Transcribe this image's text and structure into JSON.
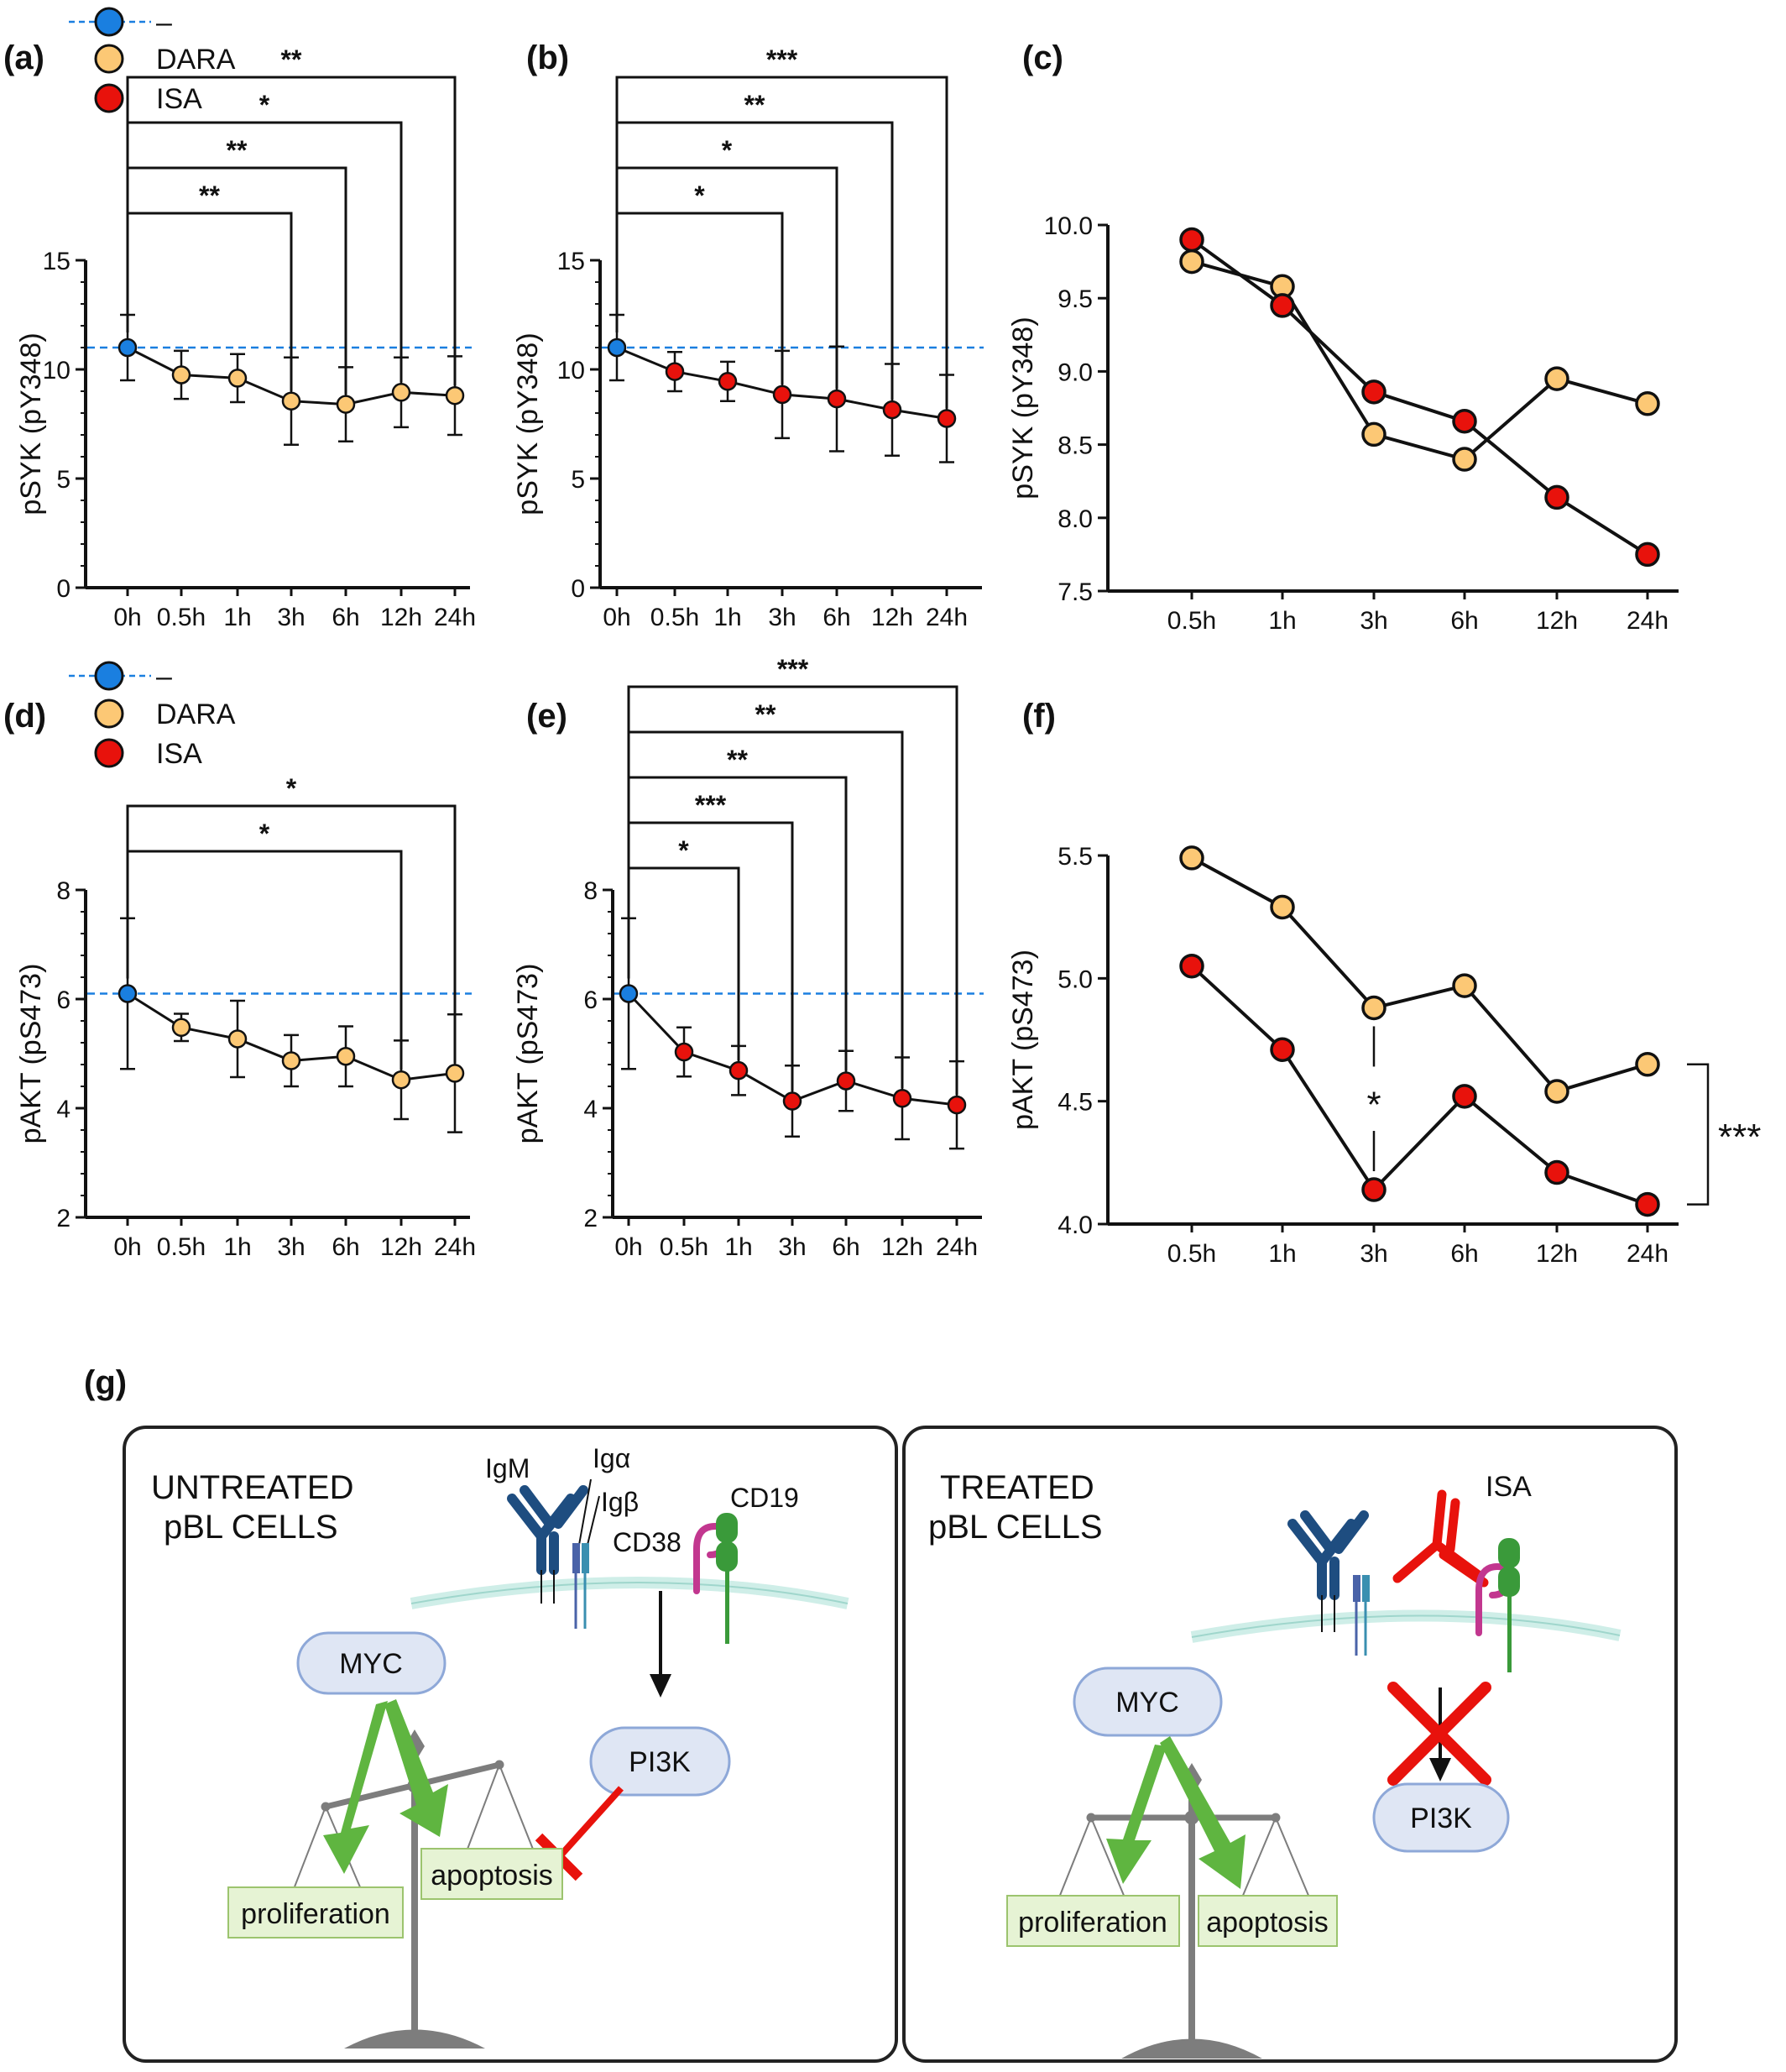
{
  "colors": {
    "control": "#1a7fe0",
    "dara": "#fcc875",
    "isa": "#e8120c",
    "refline": "#1a7fe0",
    "panel_bg": "#ffffff",
    "membrane": "#cfeee8",
    "igm": "#1e4d80",
    "cd19": "#3a9a3a",
    "cd38": "#c2378f",
    "pill_fill": "#dfe6f4",
    "pill_stroke": "#8ea8d8",
    "box_fill": "#e6f3d4",
    "box_stroke": "#9cc46e",
    "green_arrow": "#5fb540",
    "balance": "#7d7d7d"
  },
  "panel_labels": [
    "(a)",
    "(b)",
    "(c)",
    "(d)",
    "(e)",
    "(f)",
    "(g)"
  ],
  "legends": [
    {
      "items": [
        {
          "label": "–",
          "color_key": "control"
        },
        {
          "label": "DARA",
          "color_key": "dara"
        },
        {
          "label": "ISA",
          "color_key": "isa"
        }
      ]
    },
    {
      "items": [
        {
          "label": "–",
          "color_key": "control"
        },
        {
          "label": "DARA",
          "color_key": "dara"
        },
        {
          "label": "ISA",
          "color_key": "isa"
        }
      ]
    }
  ],
  "chart_data": [
    {
      "id": "a",
      "type": "line",
      "ylabel": "pSYK (pY348)",
      "categories": [
        "0h",
        "0.5h",
        "1h",
        "3h",
        "6h",
        "12h",
        "24h"
      ],
      "ylim": [
        0,
        15
      ],
      "yticks": [
        0,
        5,
        10,
        15
      ],
      "reference_line": 11,
      "series": [
        {
          "name": "–",
          "color_key": "control",
          "values": [
            11.0,
            null,
            null,
            null,
            null,
            null,
            null
          ],
          "error": [
            1.5,
            null,
            null,
            null,
            null,
            null,
            null
          ]
        },
        {
          "name": "DARA",
          "color_key": "dara",
          "values": [
            null,
            9.75,
            9.6,
            8.55,
            8.4,
            8.95,
            8.8
          ],
          "error": [
            null,
            1.1,
            1.1,
            2.0,
            1.7,
            1.6,
            1.8
          ]
        }
      ],
      "connect_control_to": "DARA",
      "significance": [
        {
          "from": "0h",
          "to": "3h",
          "label": "**"
        },
        {
          "from": "0h",
          "to": "6h",
          "label": "**"
        },
        {
          "from": "0h",
          "to": "12h",
          "label": "*"
        },
        {
          "from": "0h",
          "to": "24h",
          "label": "**"
        }
      ]
    },
    {
      "id": "b",
      "type": "line",
      "ylabel": "pSYK (pY348)",
      "categories": [
        "0h",
        "0.5h",
        "1h",
        "3h",
        "6h",
        "12h",
        "24h"
      ],
      "ylim": [
        0,
        15
      ],
      "yticks": [
        0,
        5,
        10,
        15
      ],
      "reference_line": 11,
      "series": [
        {
          "name": "–",
          "color_key": "control",
          "values": [
            11.0,
            null,
            null,
            null,
            null,
            null,
            null
          ],
          "error": [
            1.5,
            null,
            null,
            null,
            null,
            null,
            null
          ]
        },
        {
          "name": "ISA",
          "color_key": "isa",
          "values": [
            null,
            9.9,
            9.45,
            8.85,
            8.65,
            8.15,
            7.75
          ],
          "error": [
            null,
            0.9,
            0.9,
            2.0,
            2.4,
            2.1,
            2.0
          ]
        }
      ],
      "connect_control_to": "ISA",
      "significance": [
        {
          "from": "0h",
          "to": "3h",
          "label": "*"
        },
        {
          "from": "0h",
          "to": "6h",
          "label": "*"
        },
        {
          "from": "0h",
          "to": "12h",
          "label": "**"
        },
        {
          "from": "0h",
          "to": "24h",
          "label": "***"
        }
      ]
    },
    {
      "id": "c",
      "type": "line",
      "ylabel": "pSYK (pY348)",
      "categories": [
        "0.5h",
        "1h",
        "3h",
        "6h",
        "12h",
        "24h"
      ],
      "ylim": [
        7.5,
        10.0
      ],
      "yticks": [
        7.5,
        8.0,
        8.5,
        9.0,
        9.5,
        10.0
      ],
      "tick_format": "1",
      "series": [
        {
          "name": "DARA",
          "color_key": "dara",
          "values": [
            9.75,
            9.58,
            8.57,
            8.4,
            8.95,
            8.78
          ]
        },
        {
          "name": "ISA",
          "color_key": "isa",
          "values": [
            9.9,
            9.45,
            8.86,
            8.66,
            8.14,
            7.75
          ]
        }
      ]
    },
    {
      "id": "d",
      "type": "line",
      "ylabel": "pAKT (pS473)",
      "categories": [
        "0h",
        "0.5h",
        "1h",
        "3h",
        "6h",
        "12h",
        "24h"
      ],
      "ylim": [
        2,
        8
      ],
      "yticks": [
        2,
        4,
        6,
        8
      ],
      "reference_line": 6.1,
      "series": [
        {
          "name": "–",
          "color_key": "control",
          "values": [
            6.1,
            null,
            null,
            null,
            null,
            null,
            null
          ],
          "error": [
            1.38,
            null,
            null,
            null,
            null,
            null,
            null
          ]
        },
        {
          "name": "DARA",
          "color_key": "dara",
          "values": [
            null,
            5.48,
            5.27,
            4.87,
            4.95,
            4.52,
            4.64
          ],
          "error": [
            null,
            0.25,
            0.7,
            0.47,
            0.55,
            0.72,
            1.08
          ]
        }
      ],
      "connect_control_to": "DARA",
      "significance": [
        {
          "from": "0h",
          "to": "12h",
          "label": "*"
        },
        {
          "from": "0h",
          "to": "24h",
          "label": "*"
        }
      ]
    },
    {
      "id": "e",
      "type": "line",
      "ylabel": "pAKT (pS473)",
      "categories": [
        "0h",
        "0.5h",
        "1h",
        "3h",
        "6h",
        "12h",
        "24h"
      ],
      "ylim": [
        2,
        8
      ],
      "yticks": [
        2,
        4,
        6,
        8
      ],
      "reference_line": 6.1,
      "series": [
        {
          "name": "–",
          "color_key": "control",
          "values": [
            6.1,
            null,
            null,
            null,
            null,
            null,
            null
          ],
          "error": [
            1.38,
            null,
            null,
            null,
            null,
            null,
            null
          ]
        },
        {
          "name": "ISA",
          "color_key": "isa",
          "values": [
            null,
            5.03,
            4.69,
            4.13,
            4.5,
            4.18,
            4.06
          ],
          "error": [
            null,
            0.45,
            0.45,
            0.65,
            0.55,
            0.75,
            0.8
          ]
        }
      ],
      "connect_control_to": "ISA",
      "significance": [
        {
          "from": "0h",
          "to": "1h",
          "label": "*"
        },
        {
          "from": "0h",
          "to": "3h",
          "label": "***"
        },
        {
          "from": "0h",
          "to": "6h",
          "label": "**"
        },
        {
          "from": "0h",
          "to": "12h",
          "label": "**"
        },
        {
          "from": "0h",
          "to": "24h",
          "label": "***"
        }
      ]
    },
    {
      "id": "f",
      "type": "line",
      "ylabel": "pAKT (pS473)",
      "categories": [
        "0.5h",
        "1h",
        "3h",
        "6h",
        "12h",
        "24h"
      ],
      "ylim": [
        4.0,
        5.5
      ],
      "yticks": [
        4.0,
        4.5,
        5.0,
        5.5
      ],
      "tick_format": "1",
      "series": [
        {
          "name": "DARA",
          "color_key": "dara",
          "values": [
            5.49,
            5.29,
            4.88,
            4.97,
            4.54,
            4.65
          ]
        },
        {
          "name": "ISA",
          "color_key": "isa",
          "values": [
            5.05,
            4.71,
            4.14,
            4.52,
            4.21,
            4.08
          ]
        }
      ],
      "annotations": [
        {
          "kind": "vertical_star",
          "at": "3h",
          "label": "*"
        },
        {
          "kind": "side_bracket",
          "label": "***"
        }
      ]
    }
  ],
  "diagram_g": {
    "left": {
      "title_line1": "UNTREATED",
      "title_line2": "pBL CELLS",
      "receptor_labels": {
        "igm": "IgM",
        "igalpha": "Igα",
        "igbeta": "Igβ",
        "cd38": "CD38",
        "cd19": "CD19"
      },
      "myc": "MYC",
      "pi3k": "PI3K",
      "proliferation": "proliferation",
      "apoptosis": "apoptosis"
    },
    "right": {
      "title_line1": "TREATED",
      "title_line2": "pBL CELLS",
      "isa_label": "ISA",
      "myc": "MYC",
      "pi3k": "PI3K",
      "proliferation": "proliferation",
      "apoptosis": "apoptosis"
    }
  }
}
